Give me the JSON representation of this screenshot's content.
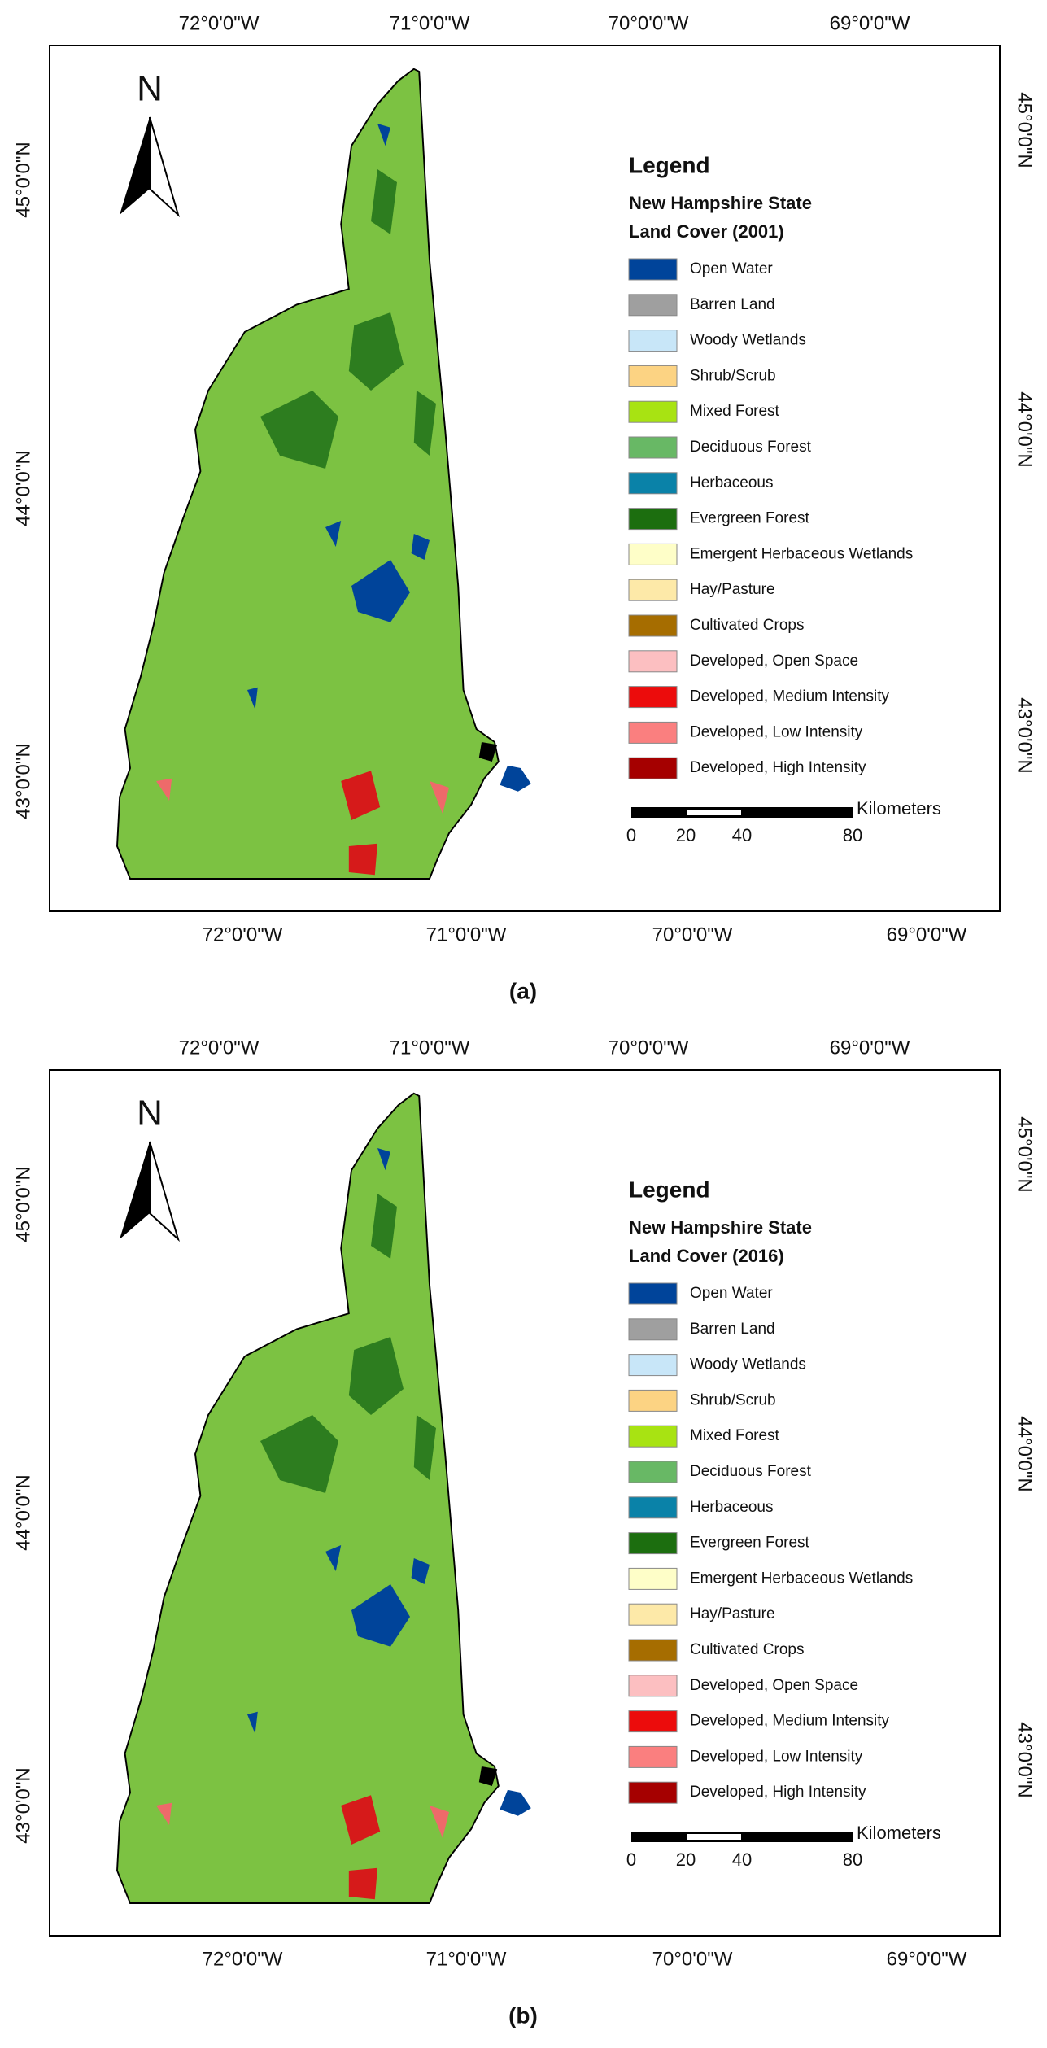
{
  "panels": [
    {
      "caption": "(a)",
      "top_labels": [
        "72°0'0\"W",
        "71°0'0\"W",
        "70°0'0\"W",
        "69°0'0\"W"
      ],
      "bottom_labels": [
        "72°0'0\"W",
        "71°0'0\"W",
        "70°0'0\"W",
        "69°0'0\"W"
      ],
      "left_labels": [
        "45°0'0\"N",
        "44°0'0\"N",
        "43°0'0\"N"
      ],
      "right_labels": [
        "45°0'0\"N",
        "44°0'0\"N",
        "43°0'0\"N"
      ],
      "north": "N",
      "legend": {
        "title": "Legend",
        "subtitle": [
          "New Hampshire State",
          "Land Cover (2001)"
        ],
        "items": [
          {
            "name": "Open Water",
            "color": "#00449a"
          },
          {
            "name": "Barren Land",
            "color": "#9f9f9f"
          },
          {
            "name": "Woody Wetlands",
            "color": "#c8e6f8"
          },
          {
            "name": "Shrub/Scrub",
            "color": "#fcd383"
          },
          {
            "name": "Mixed Forest",
            "color": "#a8e312"
          },
          {
            "name": "Deciduous Forest",
            "color": "#68b865"
          },
          {
            "name": "Herbaceous",
            "color": "#0a82a8"
          },
          {
            "name": "Evergreen Forest",
            "color": "#1c6e0f"
          },
          {
            "name": "Emergent Herbaceous Wetlands",
            "color": "#fefec8"
          },
          {
            "name": "Hay/Pasture",
            "color": "#fde9a8"
          },
          {
            "name": "Cultivated Crops",
            "color": "#a66d00"
          },
          {
            "name": "Developed, Open Space",
            "color": "#fcbfc1"
          },
          {
            "name": "Developed, Medium Intensity",
            "color": "#ec0c0c"
          },
          {
            "name": "Developed, Low Intensity",
            "color": "#fa7f7f"
          },
          {
            "name": "Developed, High Intensity",
            "color": "#a50000"
          }
        ]
      },
      "scale_bar": {
        "unit": "Kilometers",
        "ticks": [
          "0",
          "20",
          "40",
          "80"
        ]
      }
    },
    {
      "caption": "(b)",
      "top_labels": [
        "72°0'0\"W",
        "71°0'0\"W",
        "70°0'0\"W",
        "69°0'0\"W"
      ],
      "bottom_labels": [
        "72°0'0\"W",
        "71°0'0\"W",
        "70°0'0\"W",
        "69°0'0\"W"
      ],
      "left_labels": [
        "45°0'0\"N",
        "44°0'0\"N",
        "43°0'0\"N"
      ],
      "right_labels": [
        "45°0'0\"N",
        "44°0'0\"N",
        "43°0'0\"N"
      ],
      "north": "N",
      "legend": {
        "title": "Legend",
        "subtitle": [
          "New Hampshire State",
          "Land Cover (2016)"
        ],
        "items": [
          {
            "name": "Open Water",
            "color": "#00449a"
          },
          {
            "name": "Barren Land",
            "color": "#9f9f9f"
          },
          {
            "name": "Woody Wetlands",
            "color": "#c8e6f8"
          },
          {
            "name": "Shrub/Scrub",
            "color": "#fcd383"
          },
          {
            "name": "Mixed Forest",
            "color": "#a8e312"
          },
          {
            "name": "Deciduous Forest",
            "color": "#68b865"
          },
          {
            "name": "Herbaceous",
            "color": "#0a82a8"
          },
          {
            "name": "Evergreen Forest",
            "color": "#1c6e0f"
          },
          {
            "name": "Emergent Herbaceous Wetlands",
            "color": "#fefec8"
          },
          {
            "name": "Hay/Pasture",
            "color": "#fde9a8"
          },
          {
            "name": "Cultivated Crops",
            "color": "#a66d00"
          },
          {
            "name": "Developed, Open Space",
            "color": "#fcbfc1"
          },
          {
            "name": "Developed, Medium Intensity",
            "color": "#ec0c0c"
          },
          {
            "name": "Developed, Low Intensity",
            "color": "#fa7f7f"
          },
          {
            "name": "Developed, High Intensity",
            "color": "#a50000"
          }
        ]
      },
      "scale_bar": {
        "unit": "Kilometers",
        "ticks": [
          "0",
          "20",
          "40",
          "80"
        ]
      }
    }
  ]
}
